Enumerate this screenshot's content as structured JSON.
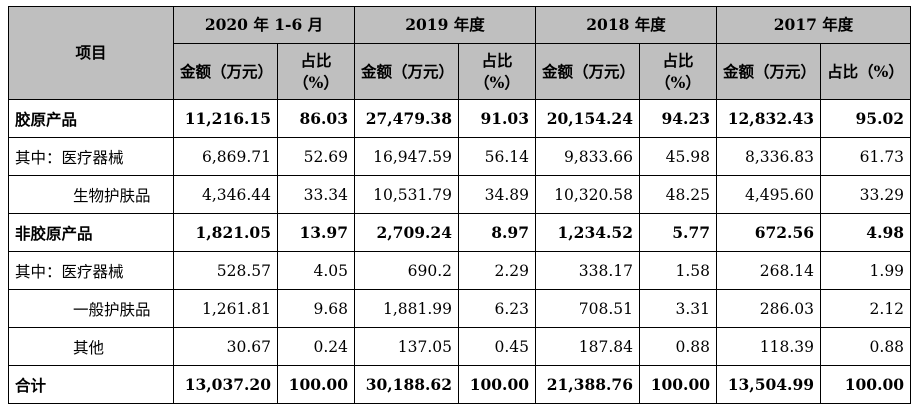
{
  "table": {
    "header_item": "项目",
    "periods": [
      "2020 年 1-6 月",
      "2019 年度",
      "2018 年度",
      "2017 年度"
    ],
    "amount_label": "金额（万元）",
    "ratio_label": "占比（%）",
    "rows": [
      {
        "label": "胶原产品",
        "bold": true,
        "indent": false,
        "values": [
          "11,216.15",
          "86.03",
          "27,479.38",
          "91.03",
          "20,154.24",
          "94.23",
          "12,832.43",
          "95.02"
        ]
      },
      {
        "label": "其中：医疗器械",
        "bold": false,
        "indent": false,
        "values": [
          "6,869.71",
          "52.69",
          "16,947.59",
          "56.14",
          "9,833.66",
          "45.98",
          "8,336.83",
          "61.73"
        ]
      },
      {
        "label": "生物护肤品",
        "bold": false,
        "indent": true,
        "values": [
          "4,346.44",
          "33.34",
          "10,531.79",
          "34.89",
          "10,320.58",
          "48.25",
          "4,495.60",
          "33.29"
        ]
      },
      {
        "label": "非胶原产品",
        "bold": true,
        "indent": false,
        "values": [
          "1,821.05",
          "13.97",
          "2,709.24",
          "8.97",
          "1,234.52",
          "5.77",
          "672.56",
          "4.98"
        ]
      },
      {
        "label": "其中：医疗器械",
        "bold": false,
        "indent": false,
        "values": [
          "528.57",
          "4.05",
          "690.2",
          "2.29",
          "338.17",
          "1.58",
          "268.14",
          "1.99"
        ]
      },
      {
        "label": "一般护肤品",
        "bold": false,
        "indent": true,
        "values": [
          "1,261.81",
          "9.68",
          "1,881.99",
          "6.23",
          "708.51",
          "3.31",
          "286.03",
          "2.12"
        ]
      },
      {
        "label": "其他",
        "bold": false,
        "indent": true,
        "values": [
          "30.67",
          "0.24",
          "137.05",
          "0.45",
          "187.84",
          "0.88",
          "118.39",
          "0.88"
        ]
      },
      {
        "label": "合计",
        "bold": true,
        "indent": false,
        "values": [
          "13,037.20",
          "100.00",
          "30,188.62",
          "100.00",
          "21,388.76",
          "100.00",
          "13,504.99",
          "100.00"
        ]
      }
    ]
  }
}
